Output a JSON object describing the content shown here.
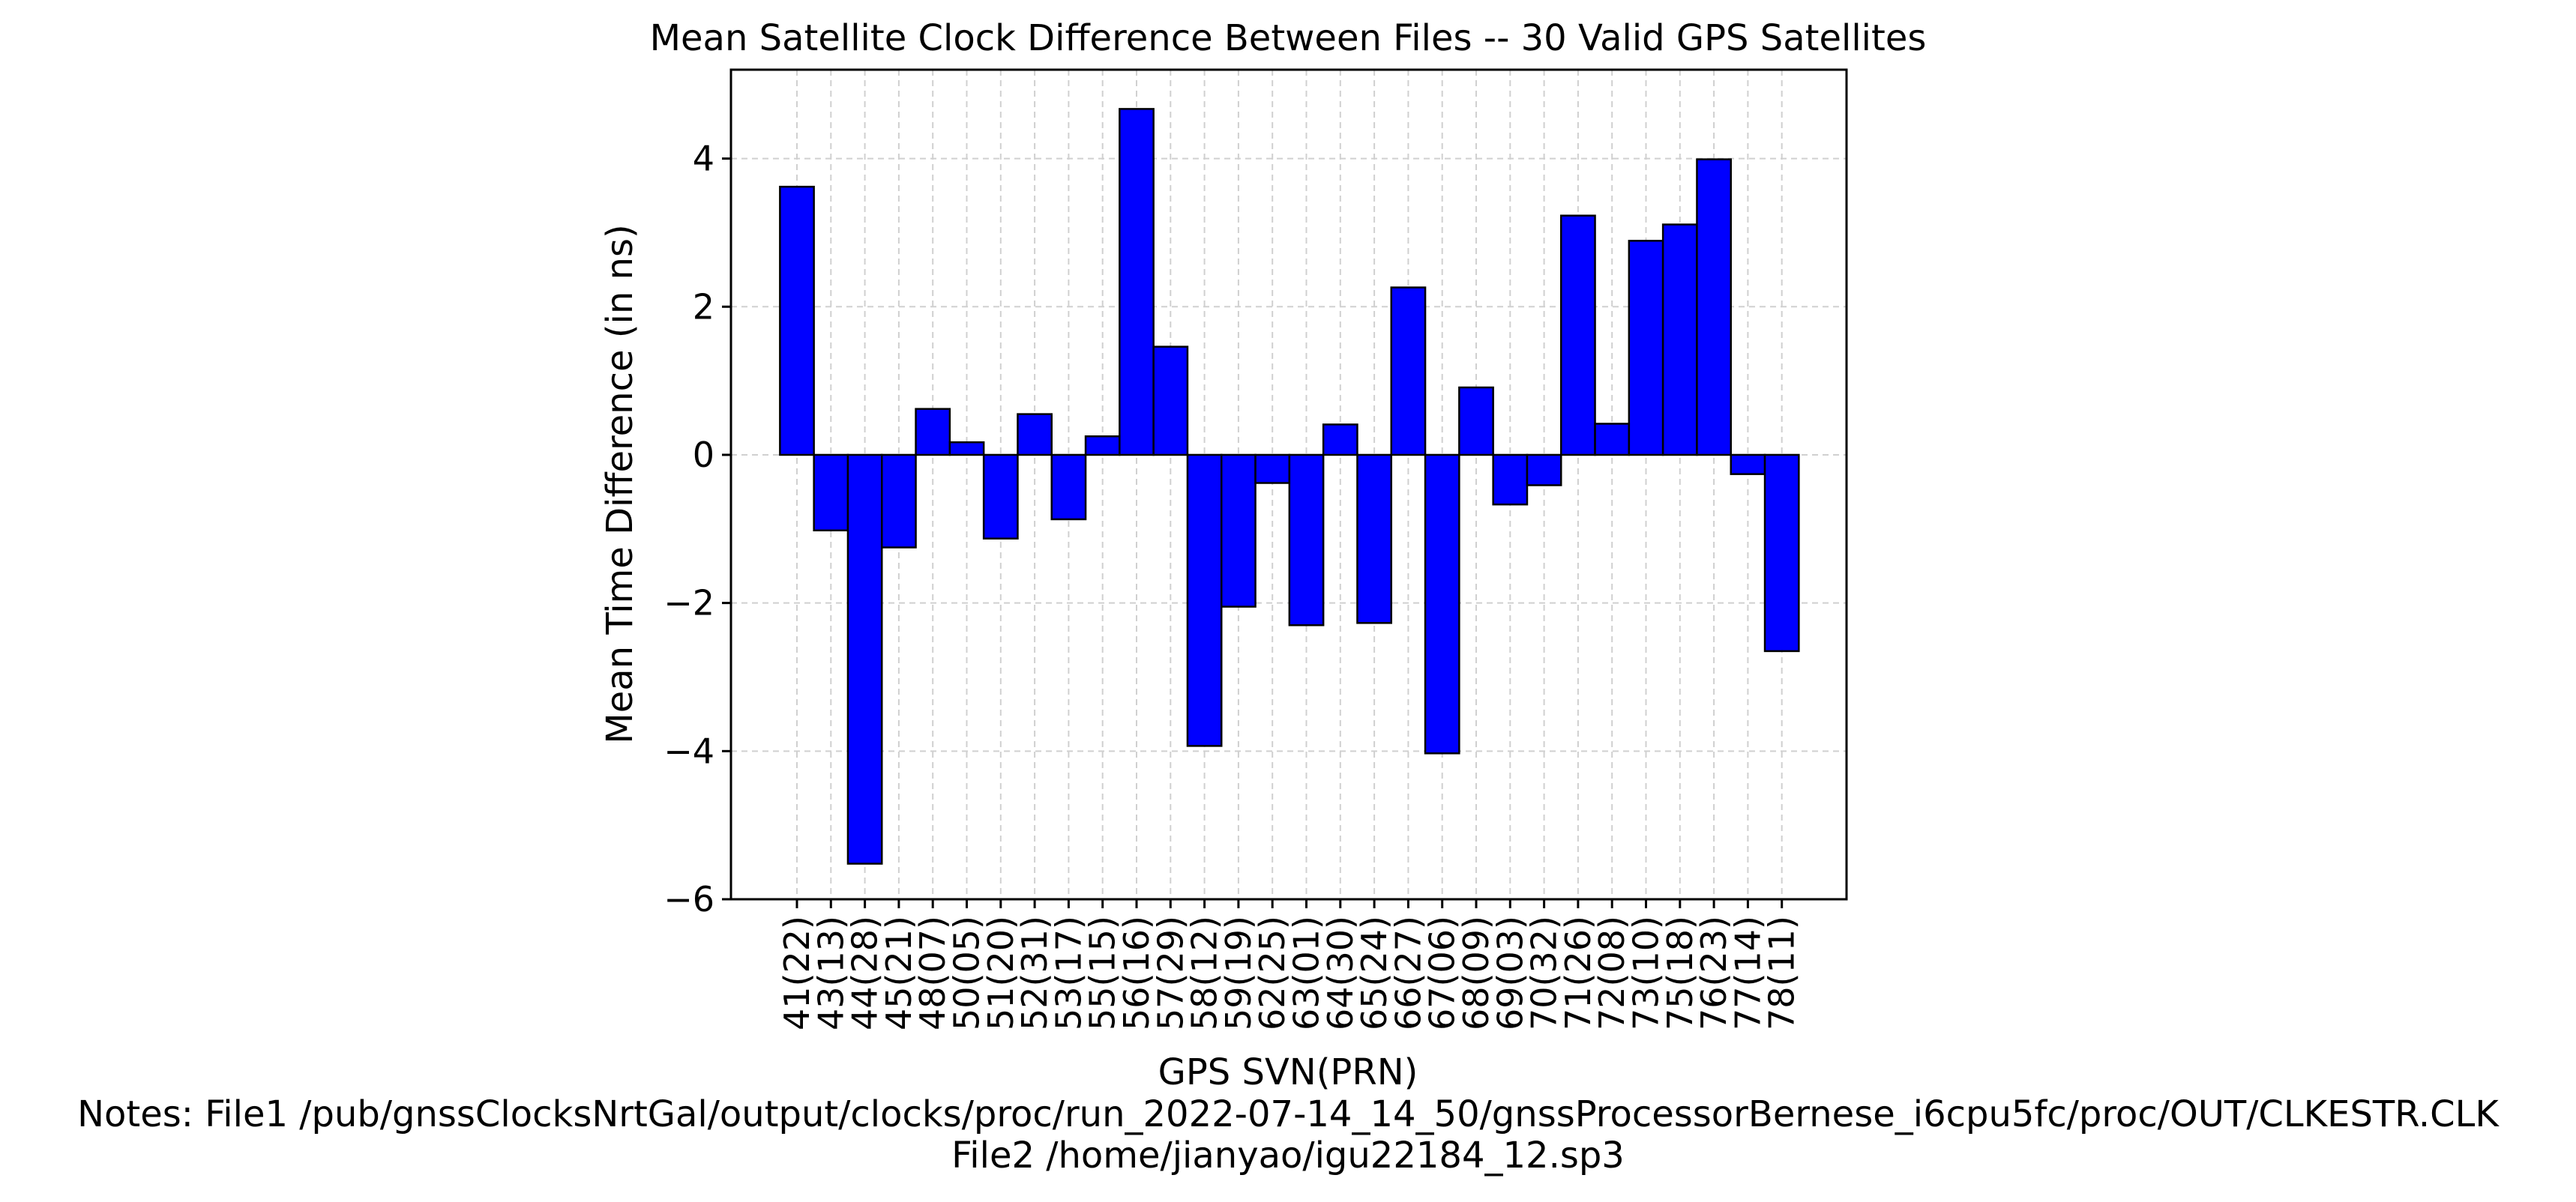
{
  "chart_data": {
    "type": "bar",
    "title": "Mean Satellite Clock Difference Between Files -- 30 Valid GPS Satellites",
    "xlabel": "GPS SVN(PRN)",
    "ylabel": "Mean Time Difference (in ns)",
    "ylim": [
      -6,
      5.2
    ],
    "yticks": [
      -6,
      -4,
      -2,
      0,
      2,
      4
    ],
    "ytick_labels": [
      "−6",
      "−4",
      "−2",
      "0",
      "2",
      "4"
    ],
    "grid": true,
    "categories": [
      "41(22)",
      "43(13)",
      "44(28)",
      "45(21)",
      "48(07)",
      "50(05)",
      "51(20)",
      "52(31)",
      "53(17)",
      "55(15)",
      "56(16)",
      "57(29)",
      "58(12)",
      "59(19)",
      "62(25)",
      "63(01)",
      "64(30)",
      "65(24)",
      "66(27)",
      "67(06)",
      "68(09)",
      "69(03)",
      "70(32)",
      "71(26)",
      "72(08)",
      "73(10)",
      "75(18)",
      "76(23)",
      "77(14)",
      "78(11)"
    ],
    "values": [
      3.62,
      -1.02,
      -5.52,
      -1.25,
      0.62,
      0.17,
      -1.13,
      0.55,
      -0.87,
      0.25,
      4.67,
      1.46,
      -3.93,
      -2.05,
      -0.38,
      -2.3,
      0.41,
      -2.27,
      2.26,
      -4.03,
      0.91,
      -0.67,
      -0.41,
      3.23,
      0.42,
      2.89,
      3.11,
      3.99,
      -0.26,
      -2.65
    ],
    "colors": {
      "bar": "#0000ff",
      "edge": "#000000",
      "grid": "#d0d0d0"
    }
  },
  "notes": {
    "line1": "Notes: File1 /pub/gnssClocksNrtGal/output/clocks/proc/run_2022-07-14_14_50/gnssProcessorBernese_i6cpu5fc/proc/OUT/CLKESTR.CLK",
    "line2": "File2 /home/jianyao/igu22184_12.sp3"
  }
}
